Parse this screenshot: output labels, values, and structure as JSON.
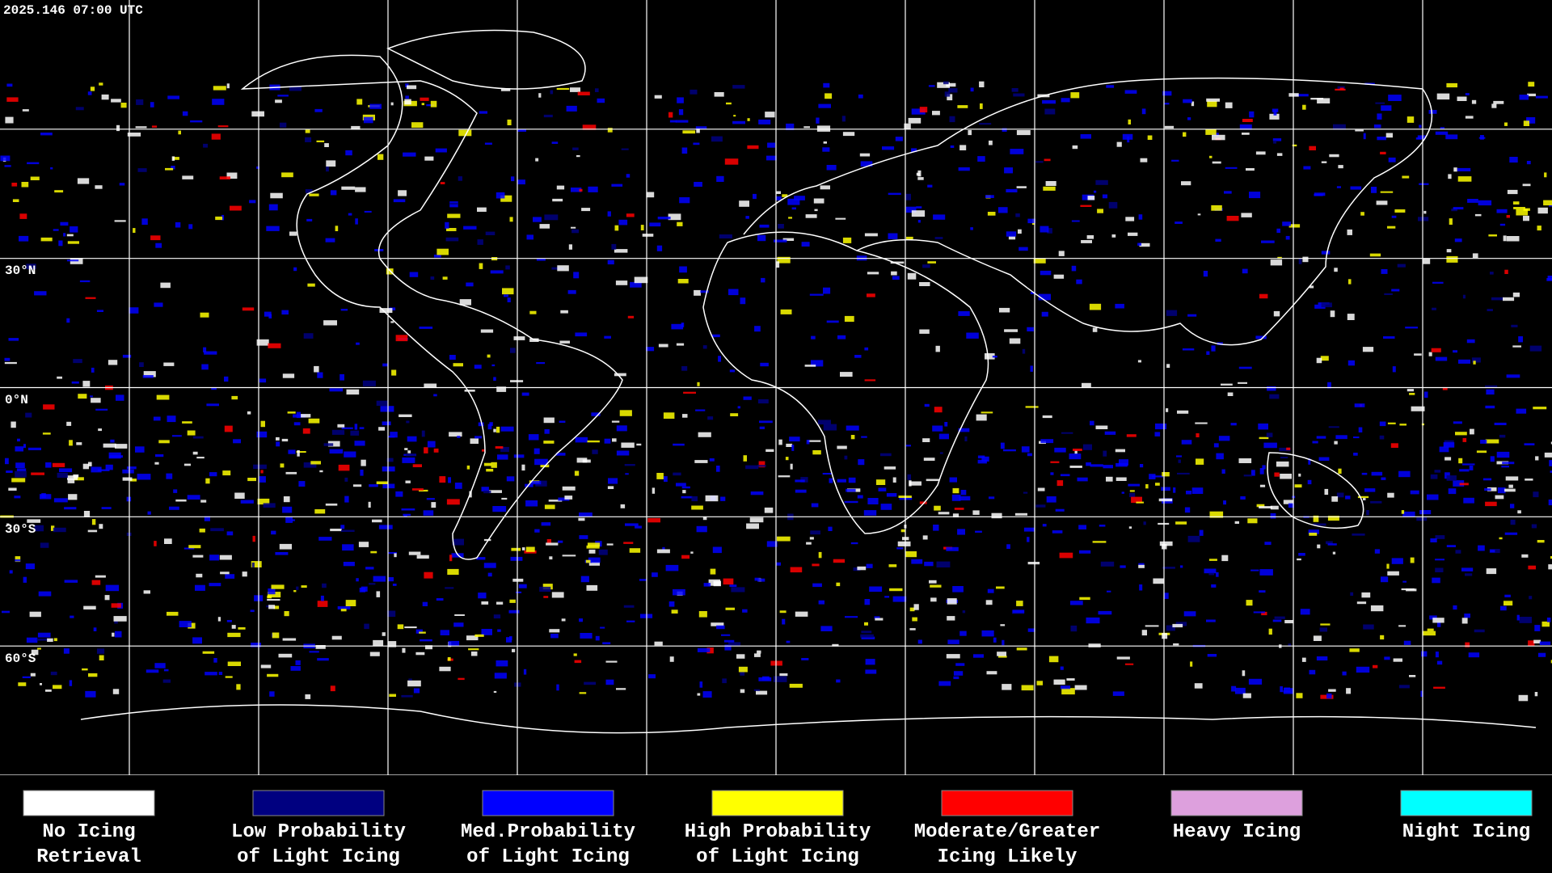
{
  "header": {
    "timestamp": "2025.146 07:00 UTC"
  },
  "map": {
    "lat_labels": [
      "30°N",
      "0°N",
      "30°S",
      "60°S"
    ]
  },
  "legend": [
    {
      "color": "#ffffff",
      "label": [
        "No Icing",
        "Retrieval"
      ]
    },
    {
      "color": "#000080",
      "label": [
        "Low Probability",
        "of Light Icing"
      ]
    },
    {
      "color": "#0000ff",
      "label": [
        "Med.Probability",
        "of Light Icing"
      ]
    },
    {
      "color": "#ffff00",
      "label": [
        "High Probability",
        "of Light Icing"
      ]
    },
    {
      "color": "#ff0000",
      "label": [
        "Moderate/Greater",
        "Icing Likely"
      ]
    },
    {
      "color": "#dda0dd",
      "label": [
        "Heavy Icing"
      ]
    },
    {
      "color": "#00ffff",
      "label": [
        "Night Icing"
      ]
    }
  ]
}
